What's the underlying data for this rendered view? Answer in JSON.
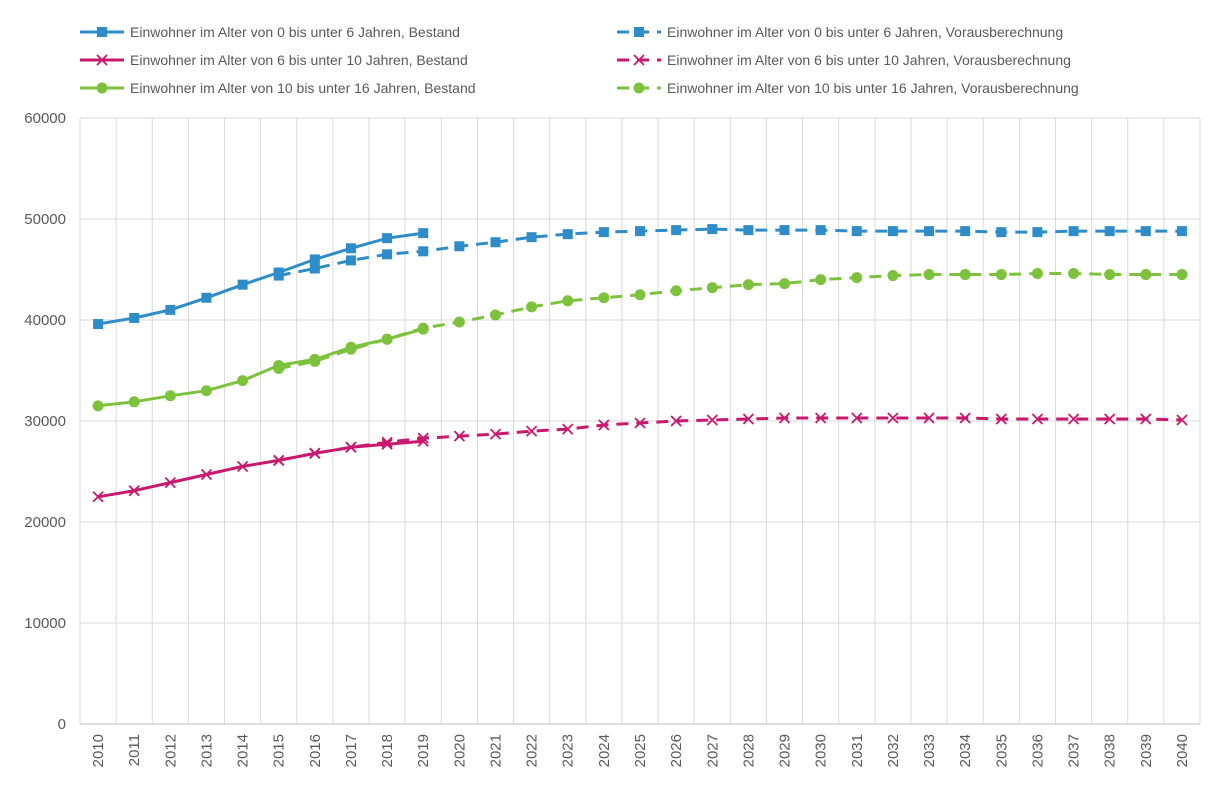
{
  "chart_data": {
    "type": "line",
    "title": "",
    "xlabel": "",
    "ylabel": "",
    "ylim": [
      0,
      60000
    ],
    "y_ticks": [
      "0",
      "10000",
      "20000",
      "30000",
      "40000",
      "50000",
      "60000"
    ],
    "y_tick_values": [
      0,
      10000,
      20000,
      30000,
      40000,
      50000,
      60000
    ],
    "x": [
      "2010",
      "2011",
      "2012",
      "2013",
      "2014",
      "2015",
      "2016",
      "2017",
      "2018",
      "2019",
      "2020",
      "2021",
      "2022",
      "2023",
      "2024",
      "2025",
      "2026",
      "2027",
      "2028",
      "2029",
      "2030",
      "2031",
      "2032",
      "2033",
      "2034",
      "2035",
      "2036",
      "2037",
      "2038",
      "2039",
      "2040"
    ],
    "grid": true,
    "legend_position": "top",
    "series": [
      {
        "name": "Einwohner im Alter von 0 bis unter 6 Jahren, Bestand",
        "color": "#2E8CC8",
        "marker": "square",
        "dashed": false,
        "x": [
          "2010",
          "2011",
          "2012",
          "2013",
          "2014",
          "2015",
          "2016",
          "2017",
          "2018",
          "2019"
        ],
        "values": [
          39600,
          40200,
          41000,
          42200,
          43500,
          44700,
          46000,
          47100,
          48100,
          48600
        ]
      },
      {
        "name": "Einwohner im Alter von 0 bis unter 6 Jahren, Vorausberechnung",
        "color": "#2E8CC8",
        "marker": "square",
        "dashed": true,
        "x": [
          "2015",
          "2016",
          "2017",
          "2018",
          "2019",
          "2020",
          "2021",
          "2022",
          "2023",
          "2024",
          "2025",
          "2026",
          "2027",
          "2028",
          "2029",
          "2030",
          "2031",
          "2032",
          "2033",
          "2034",
          "2035",
          "2036",
          "2037",
          "2038",
          "2039",
          "2040"
        ],
        "values": [
          44400,
          45100,
          45900,
          46500,
          46800,
          47300,
          47700,
          48200,
          48500,
          48700,
          48800,
          48900,
          49000,
          48900,
          48900,
          48900,
          48800,
          48800,
          48800,
          48800,
          48700,
          48700,
          48800,
          48800,
          48800,
          48800
        ]
      },
      {
        "name": "Einwohner im Alter von 6 bis unter 10 Jahren, Bestand",
        "color": "#C8196E",
        "marker": "x",
        "dashed": false,
        "x": [
          "2010",
          "2011",
          "2012",
          "2013",
          "2014",
          "2015",
          "2016",
          "2017",
          "2018",
          "2019"
        ],
        "values": [
          22500,
          23100,
          23900,
          24700,
          25500,
          26100,
          26800,
          27400,
          27700,
          28000
        ]
      },
      {
        "name": "Einwohner im Alter von 6 bis unter 10 Jahren, Vorausberechnung",
        "color": "#C8196E",
        "marker": "x",
        "dashed": true,
        "x": [
          "2015",
          "2016",
          "2017",
          "2018",
          "2019",
          "2020",
          "2021",
          "2022",
          "2023",
          "2024",
          "2025",
          "2026",
          "2027",
          "2028",
          "2029",
          "2030",
          "2031",
          "2032",
          "2033",
          "2034",
          "2035",
          "2036",
          "2037",
          "2038",
          "2039",
          "2040"
        ],
        "values": [
          26100,
          26800,
          27400,
          27900,
          28300,
          28500,
          28700,
          29000,
          29200,
          29600,
          29800,
          30000,
          30100,
          30200,
          30300,
          30300,
          30300,
          30300,
          30300,
          30300,
          30200,
          30200,
          30200,
          30200,
          30200,
          30100
        ]
      },
      {
        "name": "Einwohner im Alter von 10 bis unter 16 Jahren, Bestand",
        "color": "#7DC23C",
        "marker": "circle",
        "dashed": false,
        "x": [
          "2010",
          "2011",
          "2012",
          "2013",
          "2014",
          "2015",
          "2016",
          "2017",
          "2018",
          "2019"
        ],
        "values": [
          31500,
          31900,
          32500,
          33000,
          34000,
          35500,
          36100,
          37300,
          38100,
          39100
        ]
      },
      {
        "name": "Einwohner im Alter von 10 bis unter 16 Jahren, Vorausberechnung",
        "color": "#7DC23C",
        "marker": "circle",
        "dashed": true,
        "x": [
          "2015",
          "2016",
          "2017",
          "2018",
          "2019",
          "2020",
          "2021",
          "2022",
          "2023",
          "2024",
          "2025",
          "2026",
          "2027",
          "2028",
          "2029",
          "2030",
          "2031",
          "2032",
          "2033",
          "2034",
          "2035",
          "2036",
          "2037",
          "2038",
          "2039",
          "2040"
        ],
        "values": [
          35200,
          35900,
          37100,
          38100,
          39200,
          39800,
          40500,
          41300,
          41900,
          42200,
          42500,
          42900,
          43200,
          43500,
          43600,
          44000,
          44200,
          44400,
          44500,
          44500,
          44500,
          44600,
          44600,
          44500,
          44500,
          44500
        ]
      }
    ]
  }
}
